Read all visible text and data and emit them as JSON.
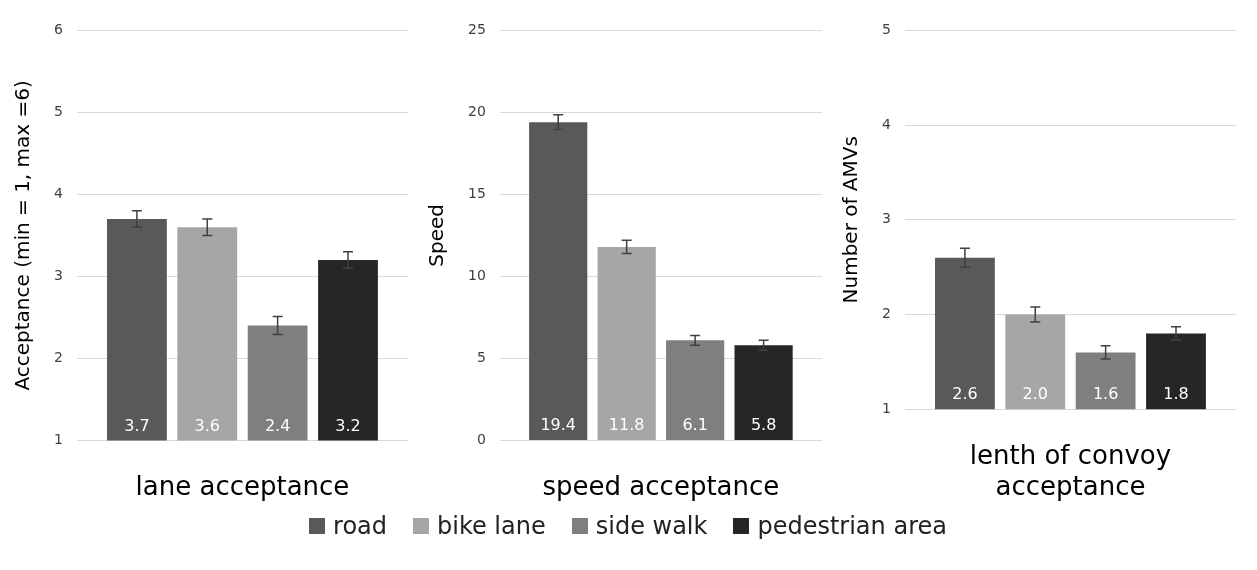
{
  "chart_data": [
    {
      "type": "bar",
      "xlabel": "lane acceptance",
      "ylabel": "Acceptance (min = 1, max =6)",
      "categories": [
        null
      ],
      "ylim": [
        1,
        6
      ],
      "yticks": [
        1,
        2,
        3,
        4,
        5,
        6
      ],
      "grid": "y",
      "legend": "bottom",
      "data_labels": true,
      "series": [
        {
          "name": "road",
          "color": "#595959",
          "values": [
            3.7
          ],
          "errors": [
            0.1
          ]
        },
        {
          "name": "bike lane",
          "color": "#a6a6a6",
          "values": [
            3.6
          ],
          "errors": [
            0.1
          ]
        },
        {
          "name": "side walk",
          "color": "#7f7f7f",
          "values": [
            2.4
          ],
          "errors": [
            0.11
          ]
        },
        {
          "name": "pedestrian area",
          "color": "#262626",
          "values": [
            3.2
          ],
          "errors": [
            0.1
          ]
        }
      ]
    },
    {
      "type": "bar",
      "xlabel": "speed acceptance",
      "ylabel": "Speed",
      "categories": [
        null
      ],
      "ylim": [
        0,
        25
      ],
      "yticks": [
        0,
        5,
        10,
        15,
        20,
        25
      ],
      "grid": "y",
      "data_labels": true,
      "series": [
        {
          "color": "#595959",
          "values": [
            19.4
          ],
          "errors": [
            0.45
          ]
        },
        {
          "color": "#a6a6a6",
          "values": [
            11.8
          ],
          "errors": [
            0.4
          ]
        },
        {
          "color": "#7f7f7f",
          "values": [
            6.1
          ],
          "errors": [
            0.3
          ]
        },
        {
          "color": "#262626",
          "values": [
            5.8
          ],
          "errors": [
            0.3
          ]
        }
      ]
    },
    {
      "type": "bar",
      "xlabel": "lenth of convoy acceptance",
      "ylabel": "Number of AMVs",
      "categories": [
        null
      ],
      "ylim": [
        1,
        5
      ],
      "yticks": [
        1,
        2,
        3,
        4,
        5
      ],
      "grid": "y",
      "series": [
        {
          "color": "#595959",
          "values": [
            2.6
          ],
          "value_labels": [
            "2.6"
          ],
          "errors": [
            0.1
          ]
        },
        {
          "color": "#a6a6a6",
          "values": [
            2.0
          ],
          "value_labels": [
            "2.0"
          ],
          "errors": [
            0.08
          ]
        },
        {
          "color": "#7f7f7f",
          "values": [
            1.6
          ],
          "value_labels": [
            "1.6"
          ],
          "errors": [
            0.07
          ]
        },
        {
          "color": "#262626",
          "values": [
            1.8
          ],
          "value_labels": [
            "1.8"
          ],
          "errors": [
            0.07
          ]
        }
      ]
    }
  ]
}
